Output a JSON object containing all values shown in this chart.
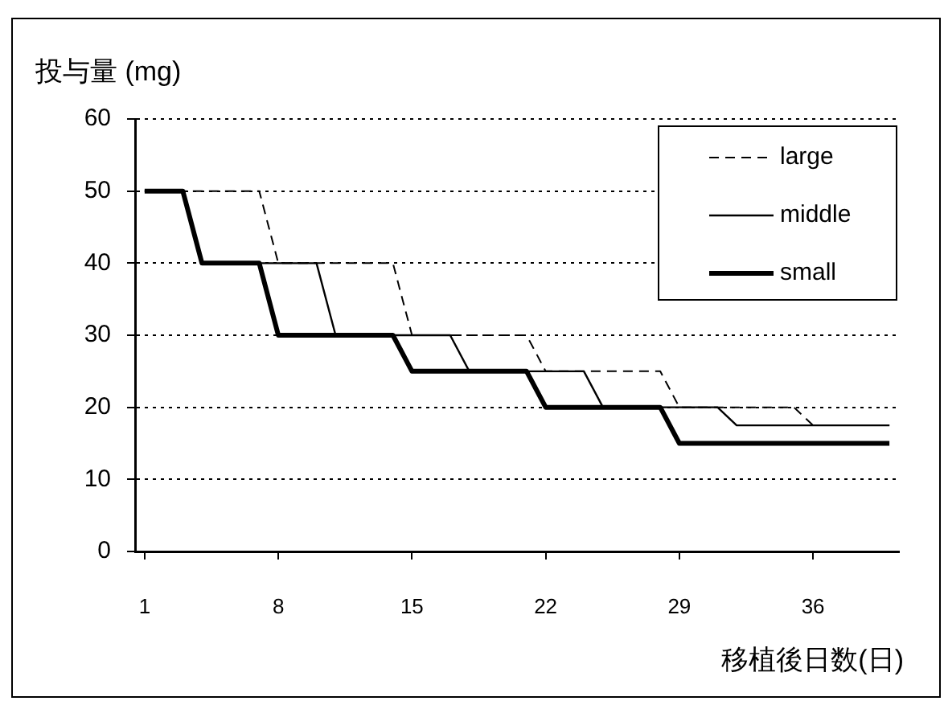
{
  "chart_data": {
    "type": "line",
    "ylabel": "投与量 (mg)",
    "xlabel": "移植後日数(日)",
    "x": [
      1,
      2,
      3,
      4,
      5,
      6,
      7,
      8,
      9,
      10,
      11,
      12,
      13,
      14,
      15,
      16,
      17,
      18,
      19,
      20,
      21,
      22,
      23,
      24,
      25,
      26,
      27,
      28,
      29,
      30,
      31,
      32,
      33,
      34,
      35,
      36,
      37,
      38,
      39,
      40
    ],
    "xlim": [
      0.5,
      40.5
    ],
    "xticks": [
      1,
      8,
      15,
      22,
      29,
      36
    ],
    "ylim": [
      0,
      60
    ],
    "yticks": [
      0,
      10,
      20,
      30,
      40,
      50,
      60
    ],
    "grid": "y",
    "legend": "top right",
    "marker": "none",
    "series": [
      {
        "name": "large",
        "color": "#000000",
        "line_style": "dashed",
        "values": [
          50,
          50,
          50,
          50,
          50,
          50,
          50,
          40,
          40,
          40,
          40,
          40,
          40,
          40,
          30,
          30,
          30,
          30,
          30,
          30,
          30,
          25,
          25,
          25,
          25,
          25,
          25,
          25,
          20,
          20,
          20,
          20,
          20,
          20,
          20,
          17.5,
          17.5,
          17.5,
          17.5,
          17.5
        ]
      },
      {
        "name": "middle",
        "color": "#000000",
        "line_style": "solid",
        "values": [
          50,
          50,
          50,
          40,
          40,
          40,
          40,
          40,
          40,
          40,
          30,
          30,
          30,
          30,
          30,
          30,
          30,
          25,
          25,
          25,
          25,
          25,
          25,
          25,
          20,
          20,
          20,
          20,
          20,
          20,
          20,
          17.5,
          17.5,
          17.5,
          17.5,
          17.5,
          17.5,
          17.5,
          17.5,
          17.5
        ]
      },
      {
        "name": "small",
        "color": "#000000",
        "line_style": "solid",
        "values": [
          50,
          50,
          50,
          40,
          40,
          40,
          40,
          30,
          30,
          30,
          30,
          30,
          30,
          30,
          25,
          25,
          25,
          25,
          25,
          25,
          25,
          20,
          20,
          20,
          20,
          20,
          20,
          20,
          15,
          15,
          15,
          15,
          15,
          15,
          15,
          15,
          15,
          15,
          15,
          15
        ]
      }
    ]
  }
}
